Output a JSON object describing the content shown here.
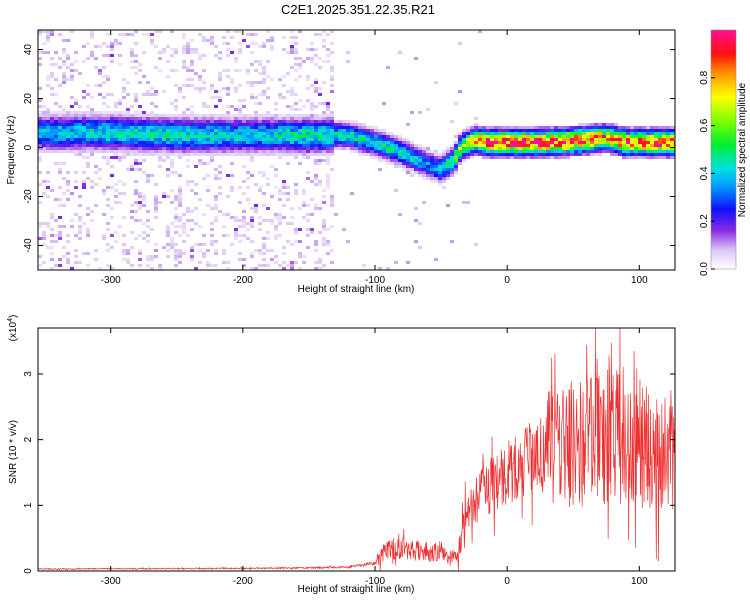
{
  "title": "C2E1.2025.351.22.35.R21",
  "chart_data": [
    {
      "type": "heatmap",
      "xlabel": "Height of straight line (km)",
      "ylabel": "Frequency (Hz)",
      "xlim": [
        -355,
        127
      ],
      "ylim": [
        -50,
        48
      ],
      "x_ticks": [
        -300,
        -200,
        -100,
        0,
        100
      ],
      "y_ticks": [
        -40,
        -20,
        0,
        20,
        40
      ],
      "colorbar": {
        "label": "Normalized spectral amplitude",
        "range": [
          0,
          1
        ],
        "ticks": [
          "0.0",
          "0.2",
          "0.4",
          "0.6",
          "0.8"
        ],
        "tick_values": [
          0,
          0.2,
          0.4,
          0.6,
          0.8
        ]
      },
      "ridge": {
        "x": [
          -355,
          -300,
          -250,
          -200,
          -150,
          -120,
          -100,
          -80,
          -60,
          -50,
          -40,
          -35,
          -25,
          -15,
          0,
          30,
          60,
          75,
          90,
          127
        ],
        "y": [
          6,
          6,
          5,
          5,
          5,
          5,
          2,
          -2,
          -7,
          -9,
          -5,
          0,
          3,
          2,
          2,
          2,
          3,
          4,
          2,
          2
        ],
        "peak_amplitude": [
          0.4,
          0.45,
          0.45,
          0.42,
          0.45,
          0.45,
          0.45,
          0.45,
          0.35,
          0.4,
          0.55,
          0.65,
          0.75,
          0.9,
          0.95,
          0.95,
          0.9,
          0.8,
          0.9,
          0.95
        ]
      }
    },
    {
      "type": "line",
      "xlabel": "Height of straight line (km)",
      "ylabel": "SNR (10 * v/v)",
      "y_multiplier": "(x10",
      "y_multiplier_exp": "4",
      "y_multiplier_close": ")",
      "xlim": [
        -355,
        127
      ],
      "ylim": [
        0,
        3.7
      ],
      "x_ticks": [
        -300,
        -200,
        -100,
        0,
        100
      ],
      "y_ticks": [
        0,
        1,
        2,
        3
      ],
      "series_color": "#ee3030",
      "envelope": {
        "x": [
          -355,
          -200,
          -150,
          -120,
          -100,
          -95,
          -85,
          -75,
          -60,
          -50,
          -42,
          -36,
          -30,
          -25,
          -15,
          0,
          15,
          30,
          45,
          60,
          70,
          80,
          90,
          100,
          110,
          127
        ],
        "y": [
          0.03,
          0.04,
          0.05,
          0.06,
          0.12,
          0.25,
          0.35,
          0.32,
          0.3,
          0.25,
          0.15,
          0.35,
          0.9,
          1.05,
          1.25,
          1.5,
          1.65,
          1.8,
          1.9,
          1.95,
          2.0,
          2.05,
          2.0,
          1.95,
          1.85,
          1.9
        ]
      }
    }
  ]
}
